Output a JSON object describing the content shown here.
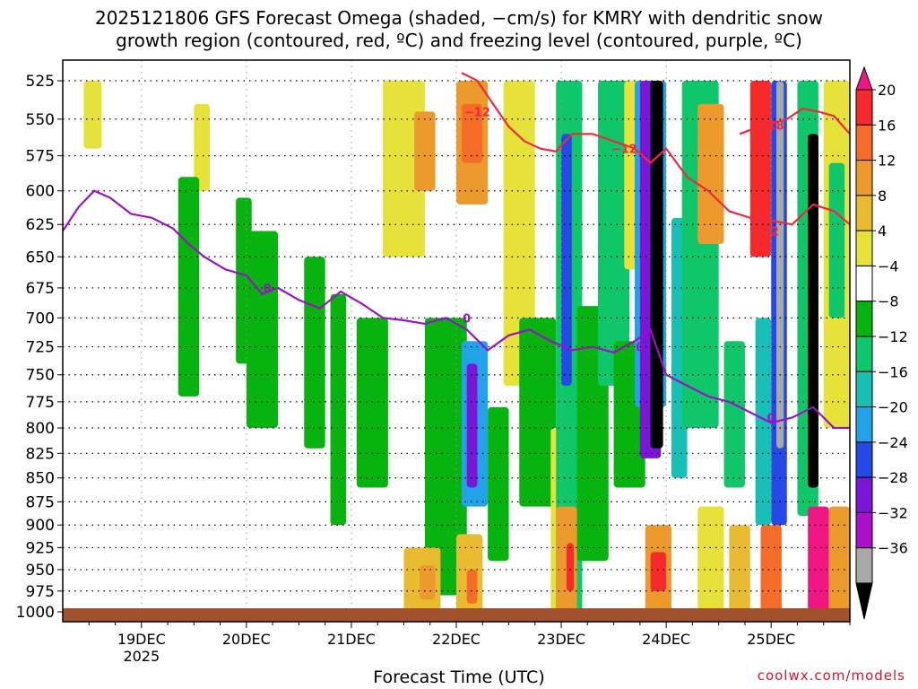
{
  "title": "2025121806 GFS Forecast Omega (shaded, −cm/s) for KMRY with dendritic snow\ngrowth region (contoured, red, ºC) and freezing level (contoured, purple, ºC)",
  "credit": "coolwx.com/models",
  "chart_data": {
    "type": "heatmap",
    "title": "2025121806 GFS Forecast Omega (shaded, −cm/s) for KMRY with dendritic snow growth region (contoured, red, ºC) and freezing level (contoured, purple, ºC)",
    "xlabel": "Forecast Time (UTC)",
    "ylabel": "",
    "x_ticks": [
      "19DEC",
      "20DEC",
      "21DEC",
      "22DEC",
      "23DEC",
      "24DEC",
      "25DEC"
    ],
    "x_tick_sublabel": "2025",
    "x_range_days": [
      18.25,
      25.75
    ],
    "y_ticks": [
      525,
      550,
      575,
      600,
      625,
      650,
      675,
      700,
      725,
      750,
      775,
      800,
      825,
      850,
      875,
      900,
      925,
      950,
      975,
      1000
    ],
    "y_range_hpa": [
      512,
      1012
    ],
    "y_scale": "log-pressure (reversed)",
    "grid": true,
    "colorbar": {
      "labels": [
        "20",
        "16",
        "12",
        "8",
        "4",
        "−4",
        "−8",
        "−12",
        "−16",
        "−20",
        "−24",
        "−28",
        "−32",
        "−36"
      ],
      "colors": [
        "#f01681",
        "#f52a2a",
        "#f56b28",
        "#ec9a2b",
        "#e8bb30",
        "#e6e23a",
        "#ffffff",
        "#06b30f",
        "#10c66a",
        "#18bfb5",
        "#22a3e8",
        "#2449e6",
        "#7a16d6",
        "#aa10c8",
        "#a8a8a8",
        "#000000"
      ]
    },
    "freezing_level_0C": {
      "label": "0",
      "x_days": [
        18.25,
        18.4,
        18.55,
        18.7,
        18.9,
        19.1,
        19.3,
        19.45,
        19.6,
        19.8,
        20.0,
        20.15,
        20.3,
        20.5,
        20.7,
        20.9,
        21.1,
        21.3,
        21.5,
        21.7,
        21.9,
        22.1,
        22.3,
        22.5,
        22.7,
        22.9,
        23.1,
        23.3,
        23.5,
        23.7,
        23.85,
        24.0,
        24.2,
        24.4,
        24.6,
        24.8,
        25.0,
        25.2,
        25.4,
        25.6,
        25.75
      ],
      "pressure_hpa": [
        630,
        612,
        600,
        605,
        617,
        620,
        628,
        640,
        650,
        660,
        665,
        680,
        675,
        685,
        692,
        678,
        688,
        700,
        702,
        705,
        700,
        710,
        728,
        715,
        710,
        720,
        728,
        725,
        730,
        720,
        710,
        750,
        760,
        770,
        775,
        785,
        795,
        790,
        780,
        800,
        800
      ]
    },
    "dendritic_minus12C": [
      {
        "label": "−12",
        "x_days": [
          22.05,
          22.2,
          22.35,
          22.5,
          22.65,
          22.8,
          22.95,
          23.1,
          23.3,
          23.5,
          23.7,
          23.85,
          24.0,
          24.2,
          24.4,
          24.6,
          24.8,
          25.0,
          25.2,
          25.4,
          25.6,
          25.75
        ],
        "pressure_hpa": [
          520,
          525,
          540,
          555,
          565,
          570,
          572,
          560,
          560,
          565,
          570,
          580,
          570,
          590,
          600,
          615,
          620,
          622,
          625,
          610,
          615,
          625
        ]
      },
      {
        "label": "−18",
        "x_days": [
          24.7,
          24.85,
          25.0,
          25.15,
          25.3,
          25.45,
          25.6,
          25.75
        ],
        "pressure_hpa": [
          560,
          556,
          553,
          550,
          543,
          545,
          548,
          560
        ]
      }
    ]
  }
}
